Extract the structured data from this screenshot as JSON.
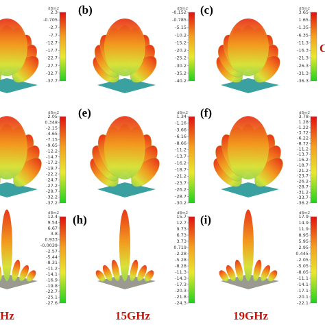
{
  "panels": [
    {
      "label": null,
      "colorbar": {
        "unit": "dBm2",
        "ticks": [
          "2.3",
          "-0.705",
          "-2.7",
          "-7.7",
          "-12.7",
          "-17.7",
          "-22.7",
          "-27.7",
          "-32.7",
          "-37.7"
        ]
      }
    },
    {
      "label": "(b)",
      "colorbar": {
        "unit": "dBm2",
        "ticks": [
          "-0.152",
          "-0.785",
          "-5.15",
          "-10.2",
          "-15.2",
          "-20.2",
          "-25.2",
          "-30.2",
          "-35.2",
          "-40.2"
        ]
      }
    },
    {
      "label": "(c)",
      "colorbar": {
        "unit": "dBm2",
        "ticks": [
          "3.65",
          "1.65",
          "-1.35",
          "-6.35",
          "-11.3",
          "-16.3",
          "-21.3",
          "-26.3",
          "-31.3",
          "-36.3"
        ]
      }
    },
    {
      "label": null,
      "colorbar": {
        "unit": "dBm2",
        "ticks": [
          "2.05",
          "0.348",
          "-2.15",
          "-4.65",
          "-7.15",
          "-9.65",
          "-12.2",
          "-14.7",
          "-17.2",
          "-19.7",
          "-22.2",
          "-24.7",
          "-27.2",
          "-29.7",
          "-32.2",
          "-37.2"
        ]
      }
    },
    {
      "label": "(e)",
      "colorbar": {
        "unit": "dBm2",
        "ticks": [
          "1.34",
          "-1.16",
          "-3.66",
          "-6.16",
          "-8.66",
          "-11.2",
          "-13.7",
          "-16.2",
          "-18.7",
          "-21.2",
          "-23.7",
          "-26.2",
          "-28.7",
          "-30.2"
        ]
      }
    },
    {
      "label": "(f)",
      "colorbar": {
        "unit": "dBm2",
        "ticks": [
          "3.78",
          "1.28",
          "-1.22",
          "-3.72",
          "-6.22",
          "-8.72",
          "-11.2",
          "-13.7",
          "-16.2",
          "-18.7",
          "-21.2",
          "-23.7",
          "-26.2",
          "-28.7",
          "-31.2",
          "-33.7",
          "-36.2"
        ]
      }
    },
    {
      "label": null,
      "colorbar": {
        "unit": "dBm2",
        "ticks": [
          "12.4",
          "9.54",
          "6.67",
          "3.8",
          "0.933",
          "-0.0039",
          "-2.57",
          "-5.44",
          "-8.31",
          "-11.2",
          "-14.1",
          "-16.9",
          "-19.8",
          "-22.7",
          "-25.1",
          "-27.6"
        ]
      }
    },
    {
      "label": "(h)",
      "colorbar": {
        "unit": "dBm2",
        "ticks": [
          "15.7",
          "12.7",
          "9.73",
          "6.73",
          "3.73",
          "0.719",
          "-2.28",
          "-5.28",
          "-8.28",
          "-11.3",
          "-14.3",
          "-17.3",
          "-20.3",
          "-21.8",
          "-24.3"
        ]
      }
    },
    {
      "label": "(i)",
      "colorbar": {
        "unit": "dBm2",
        "ticks": [
          "17.9",
          "14.9",
          "11.9",
          "8.95",
          "5.95",
          "2.95",
          "0.445",
          "-2.05",
          "-5.05",
          "-8.05",
          "-11.1",
          "-14.1",
          "-17.1",
          "-20.1",
          "-22.1"
        ]
      }
    }
  ],
  "frequencies": [
    "Hz",
    "15GHz",
    "19GHz"
  ],
  "side_note": "C"
}
